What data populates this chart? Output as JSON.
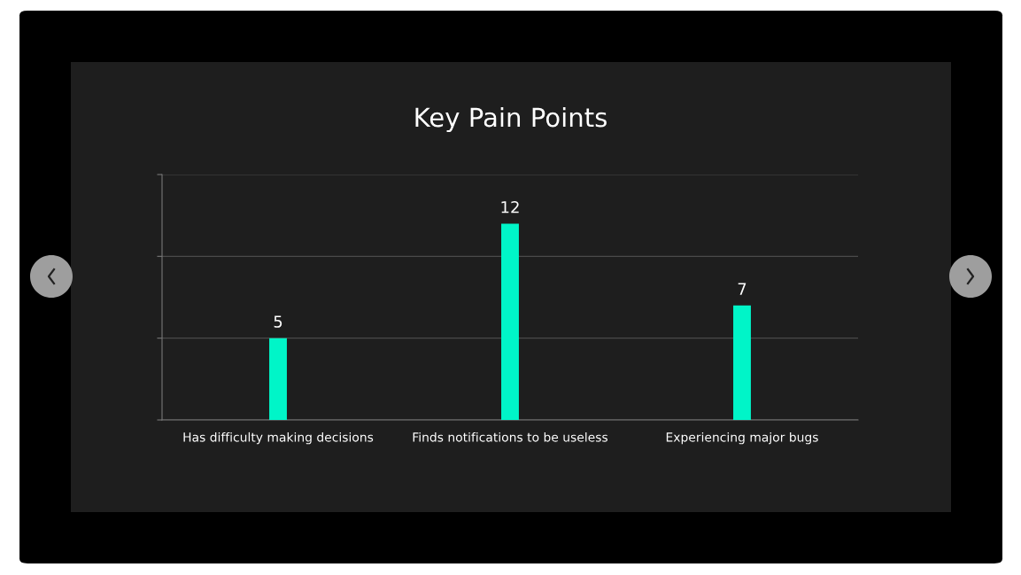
{
  "chart_data": {
    "type": "bar",
    "title": "Key Pain Points",
    "categories": [
      "Has difficulty making decisions",
      "Finds notifications to be useless",
      "Experiencing major bugs"
    ],
    "values": [
      5,
      12,
      7
    ],
    "color": "#00f5c8",
    "ylim": [
      0,
      15
    ],
    "yticks": [
      {
        "value": 0,
        "label": null
      },
      {
        "value": 5,
        "label": null
      },
      {
        "value": 10,
        "label": null
      },
      {
        "value": 15,
        "label": null
      }
    ],
    "tick_labels": "x",
    "grid": "y",
    "data_labels": true
  }
}
